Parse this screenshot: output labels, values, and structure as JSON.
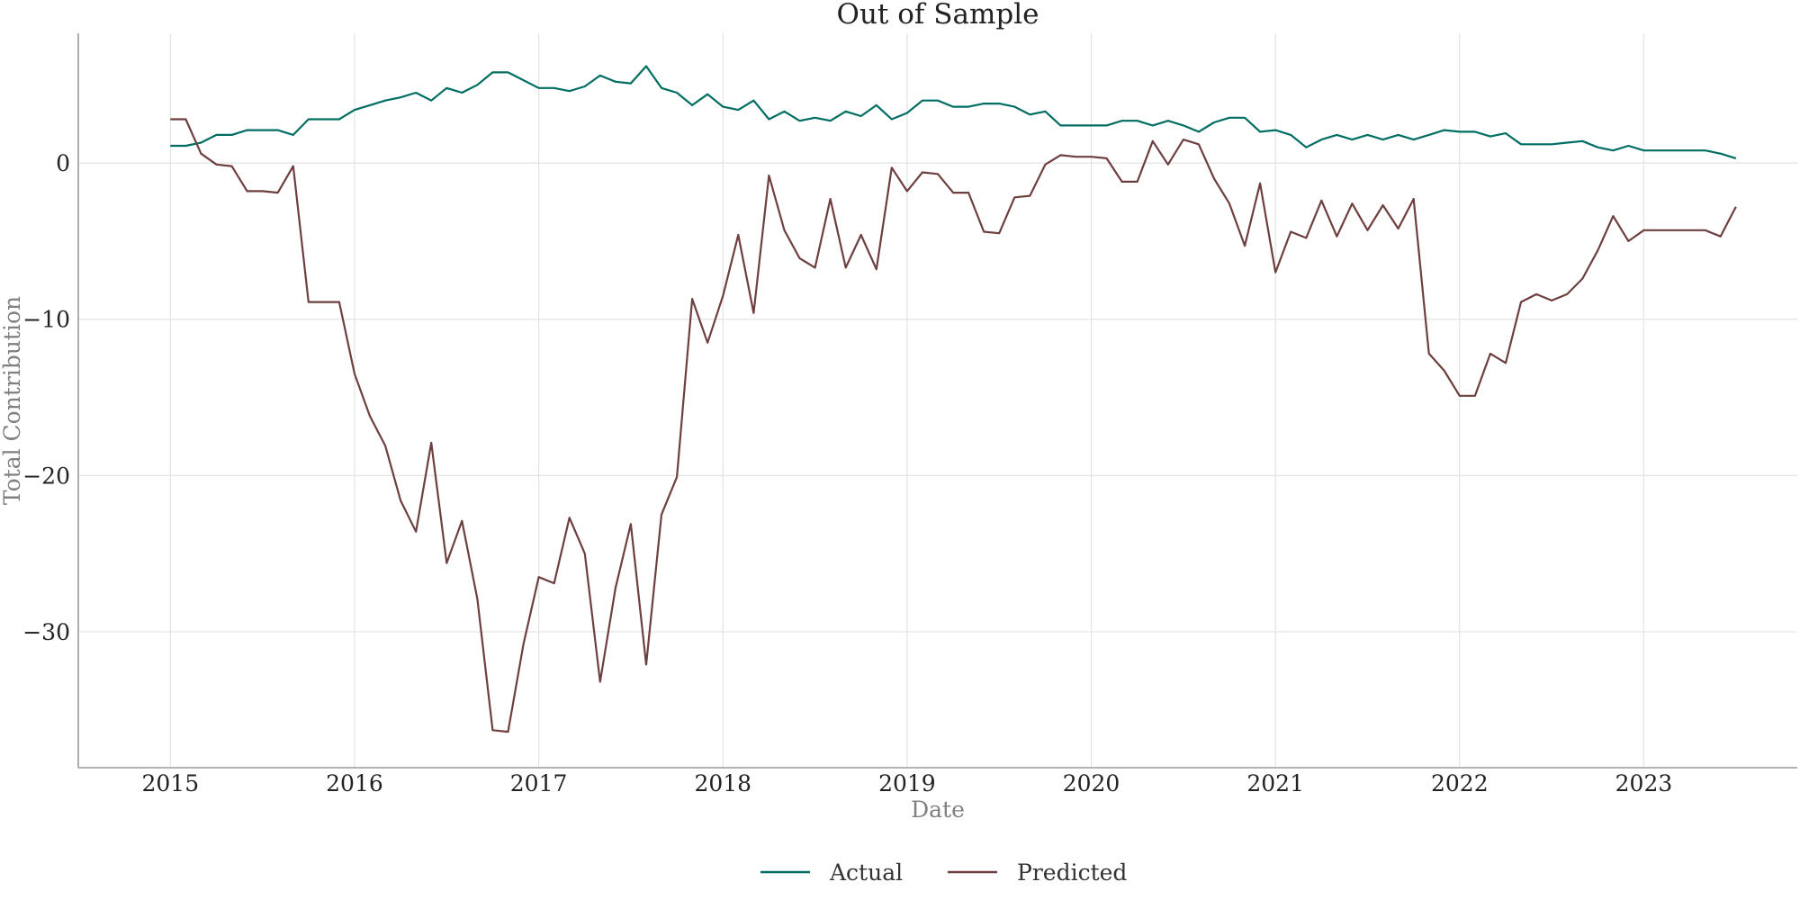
{
  "chart_data": {
    "type": "line",
    "title": "Out of Sample",
    "xlabel": "Date",
    "ylabel": "Total Contribution",
    "x_ticks": [
      "2015",
      "2016",
      "2017",
      "2018",
      "2019",
      "2020",
      "2021",
      "2022",
      "2023"
    ],
    "y_ticks": [
      "0",
      "−10",
      "−20",
      "−30"
    ],
    "xlim": [
      "2014-07",
      "2023-11"
    ],
    "ylim": [
      -38.7,
      8.3
    ],
    "grid": true,
    "legend_position": "bottom-center",
    "x": [
      "2015-01",
      "2015-02",
      "2015-03",
      "2015-04",
      "2015-05",
      "2015-06",
      "2015-07",
      "2015-08",
      "2015-09",
      "2015-10",
      "2015-11",
      "2015-12",
      "2016-01",
      "2016-02",
      "2016-03",
      "2016-04",
      "2016-05",
      "2016-06",
      "2016-07",
      "2016-08",
      "2016-09",
      "2016-10",
      "2016-11",
      "2016-12",
      "2017-01",
      "2017-02",
      "2017-03",
      "2017-04",
      "2017-05",
      "2017-06",
      "2017-07",
      "2017-08",
      "2017-09",
      "2017-10",
      "2017-11",
      "2017-12",
      "2018-01",
      "2018-02",
      "2018-03",
      "2018-04",
      "2018-05",
      "2018-06",
      "2018-07",
      "2018-08",
      "2018-09",
      "2018-10",
      "2018-11",
      "2018-12",
      "2019-01",
      "2019-02",
      "2019-03",
      "2019-04",
      "2019-05",
      "2019-06",
      "2019-07",
      "2019-08",
      "2019-09",
      "2019-10",
      "2019-11",
      "2019-12",
      "2020-01",
      "2020-02",
      "2020-03",
      "2020-04",
      "2020-05",
      "2020-06",
      "2020-07",
      "2020-08",
      "2020-09",
      "2020-10",
      "2020-11",
      "2020-12",
      "2021-01",
      "2021-02",
      "2021-03",
      "2021-04",
      "2021-05",
      "2021-06",
      "2021-07",
      "2021-08",
      "2021-09",
      "2021-10",
      "2021-11",
      "2021-12",
      "2022-01",
      "2022-02",
      "2022-03",
      "2022-04",
      "2022-05",
      "2022-06",
      "2022-07",
      "2022-08",
      "2022-09",
      "2022-10",
      "2022-11",
      "2022-12",
      "2023-01",
      "2023-02",
      "2023-03",
      "2023-04",
      "2023-05",
      "2023-06",
      "2023-07"
    ],
    "series": [
      {
        "name": "Actual",
        "color": "#006d62",
        "values": [
          1.1,
          1.1,
          1.3,
          1.8,
          1.8,
          2.1,
          2.1,
          2.1,
          1.8,
          2.8,
          2.8,
          2.8,
          3.4,
          3.7,
          4.0,
          4.2,
          4.5,
          4.0,
          4.8,
          4.5,
          5.0,
          5.8,
          5.8,
          5.3,
          4.8,
          4.8,
          4.6,
          4.9,
          5.6,
          5.2,
          5.1,
          6.2,
          4.8,
          4.5,
          3.7,
          4.4,
          3.6,
          3.4,
          4.0,
          2.8,
          3.3,
          2.7,
          2.9,
          2.7,
          3.3,
          3.0,
          3.7,
          2.8,
          3.2,
          4.0,
          4.0,
          3.6,
          3.6,
          3.8,
          3.8,
          3.6,
          3.1,
          3.3,
          2.4,
          2.4,
          2.4,
          2.4,
          2.7,
          2.7,
          2.4,
          2.7,
          2.4,
          2.0,
          2.6,
          2.9,
          2.9,
          2.0,
          2.1,
          1.8,
          1.0,
          1.5,
          1.8,
          1.5,
          1.8,
          1.5,
          1.8,
          1.5,
          1.8,
          2.1,
          2.0,
          2.0,
          1.7,
          1.9,
          1.2,
          1.2,
          1.2,
          1.3,
          1.4,
          1.0,
          0.8,
          1.1,
          0.8,
          0.8,
          0.8,
          0.8,
          0.8,
          0.6,
          0.3
        ]
      },
      {
        "name": "Predicted",
        "color": "#6e3f3f",
        "values": [
          2.8,
          2.8,
          0.6,
          -0.1,
          -0.2,
          -1.8,
          -1.8,
          -1.9,
          -0.2,
          -8.9,
          -8.9,
          -8.9,
          -13.5,
          -16.2,
          -18.1,
          -21.6,
          -23.6,
          -17.9,
          -25.6,
          -22.9,
          -27.9,
          -36.3,
          -36.4,
          -30.8,
          -26.5,
          -26.9,
          -22.7,
          -25.0,
          -33.2,
          -27.2,
          -23.1,
          -32.1,
          -22.5,
          -20.1,
          -8.7,
          -11.5,
          -8.5,
          -4.6,
          -9.6,
          -0.8,
          -4.3,
          -6.1,
          -6.7,
          -2.3,
          -6.7,
          -4.6,
          -6.8,
          -0.3,
          -1.8,
          -0.6,
          -0.7,
          -1.9,
          -1.9,
          -4.4,
          -4.5,
          -2.2,
          -2.1,
          -0.1,
          0.5,
          0.4,
          0.4,
          0.3,
          -1.2,
          -1.2,
          1.4,
          -0.1,
          1.5,
          1.2,
          -1.0,
          -2.6,
          -5.3,
          -1.3,
          -7.0,
          -4.4,
          -4.8,
          -2.4,
          -4.7,
          -2.6,
          -4.3,
          -2.7,
          -4.2,
          -2.3,
          -12.2,
          -13.3,
          -14.9,
          -14.9,
          -12.2,
          -12.8,
          -8.9,
          -8.4,
          -8.8,
          -8.4,
          -7.4,
          -5.6,
          -3.4,
          -5.0,
          -4.3,
          -4.3,
          -4.3,
          -4.3,
          -4.3,
          -4.7,
          -2.8
        ]
      }
    ]
  }
}
